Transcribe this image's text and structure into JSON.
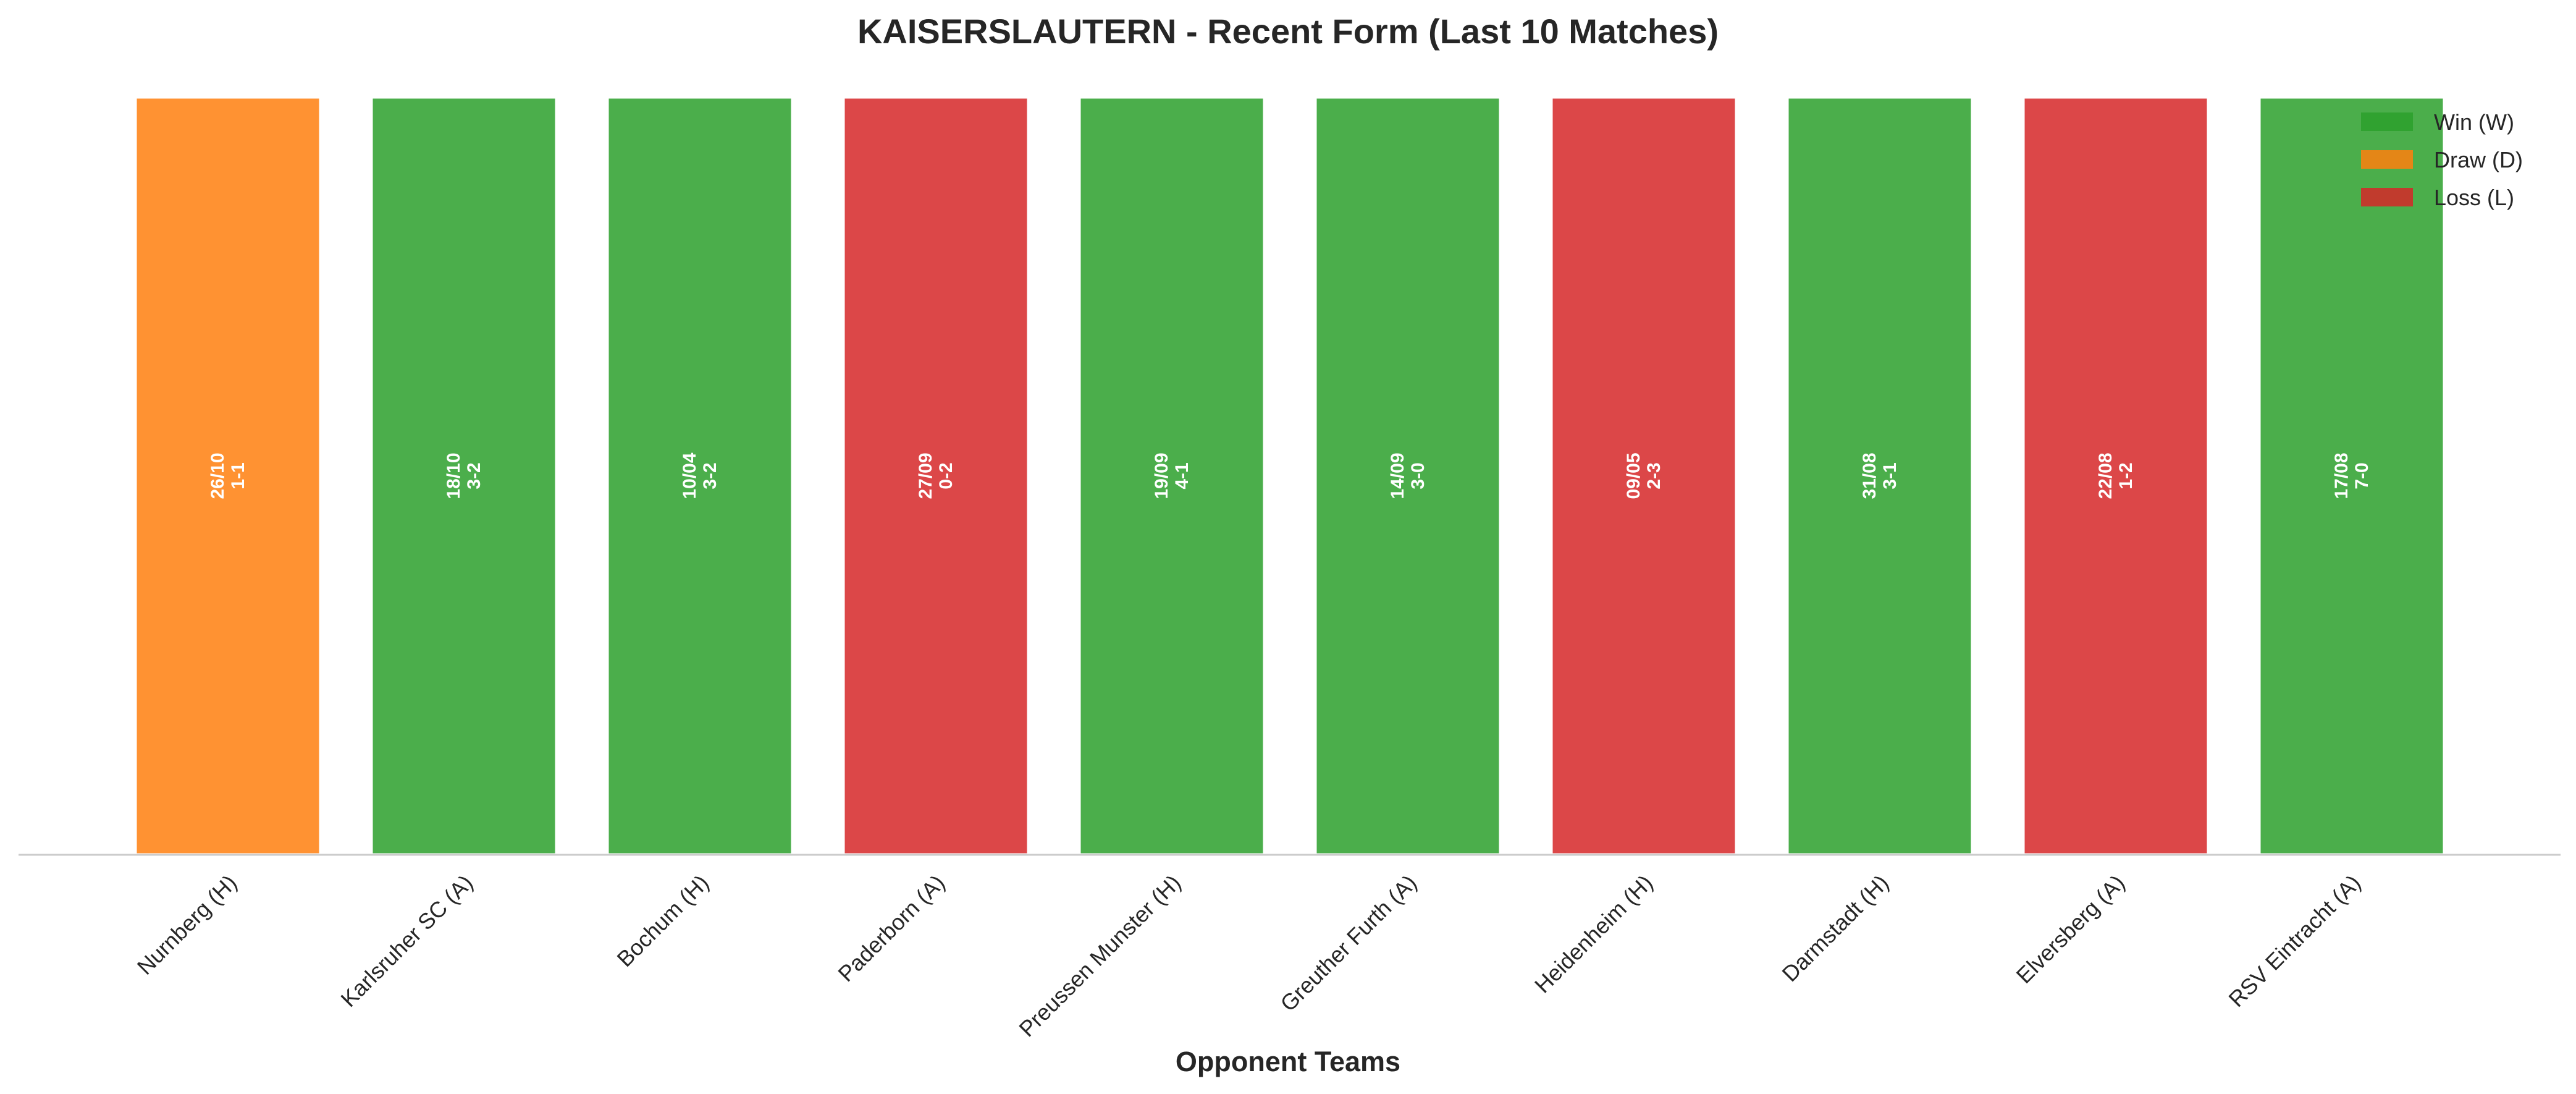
{
  "chart_data": {
    "type": "bar",
    "title": "KAISERSLAUTERN - Recent Form (Last 10 Matches)",
    "xlabel": "Opponent Teams",
    "ylabel": "",
    "ylim": [
      0,
      1
    ],
    "grid": false,
    "legend_placement": "top-right",
    "categories": [
      "Nurnberg (H)",
      "Karlsruher SC (A)",
      "Bochum (H)",
      "Paderborn (A)",
      "Preussen Munster (H)",
      "Greuther Furth (A)",
      "Heidenheim (H)",
      "Darmstadt (H)",
      "Elversberg (A)",
      "RSV Eintracht (A)"
    ],
    "values": [
      1,
      1,
      1,
      1,
      1,
      1,
      1,
      1,
      1,
      1
    ],
    "results": [
      "D",
      "W",
      "W",
      "L",
      "W",
      "W",
      "L",
      "W",
      "L",
      "W"
    ],
    "dates": [
      "26/10",
      "18/10",
      "10/04",
      "27/09",
      "19/09",
      "14/09",
      "09/05",
      "31/08",
      "22/08",
      "17/08"
    ],
    "scores": [
      "1-1",
      "3-2",
      "3-2",
      "0-2",
      "4-1",
      "3-0",
      "2-3",
      "3-1",
      "1-2",
      "7-0"
    ],
    "legend": [
      {
        "key": "W",
        "label": "Win (W)",
        "color": "#2ca02c"
      },
      {
        "key": "D",
        "label": "Draw (D)",
        "color": "#ff7f0e"
      },
      {
        "key": "L",
        "label": "Loss (L)",
        "color": "#d62728"
      }
    ],
    "colors": {
      "W": "#2ca02c",
      "D": "#ff7f0e",
      "L": "#d62728"
    }
  }
}
